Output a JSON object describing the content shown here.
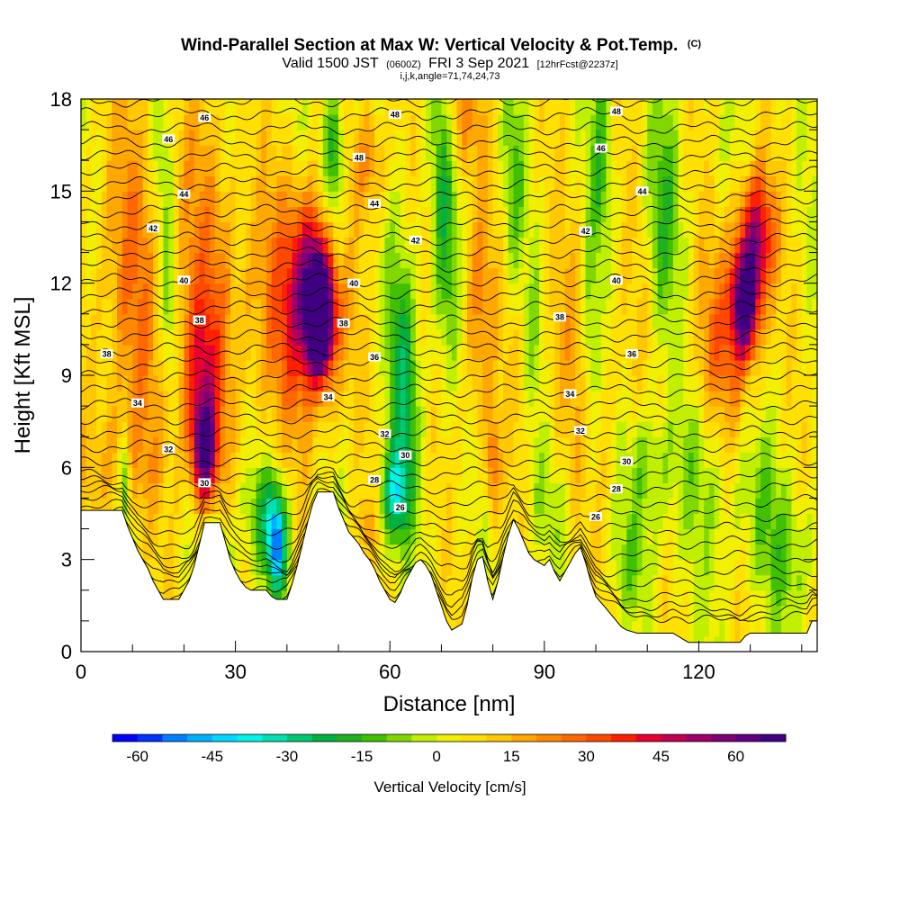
{
  "header": {
    "title_main": "Wind-Parallel Section at Max W: Vertical Velocity & Pot.Temp.",
    "title_suffix": "(C)",
    "valid_prefix": "Valid 1500 JST",
    "valid_small": "(0600Z)",
    "valid_date": "FRI 3 Sep 2021",
    "forecast": "[12hrFcst@2237z]",
    "params": "i,j,k,angle=71,74,24,73"
  },
  "chart_data": {
    "type": "heatmap",
    "xlabel": "Distance [nm]",
    "ylabel": "Height [Kft MSL]",
    "xlim": [
      0,
      143
    ],
    "ylim": [
      0,
      18
    ],
    "x_ticks": [
      0,
      30,
      60,
      90,
      120
    ],
    "y_ticks": [
      0,
      3,
      6,
      9,
      12,
      15,
      18
    ],
    "colorbar": {
      "label": "Vertical Velocity [cm/s]",
      "ticks": [
        -60,
        -45,
        -30,
        -15,
        0,
        15,
        30,
        45,
        60
      ],
      "range": [
        -65,
        70
      ],
      "step": 5,
      "colors": [
        "#0000ff",
        "#0033ff",
        "#0080ff",
        "#00b0ff",
        "#00d8ff",
        "#00f5e8",
        "#00e0b0",
        "#00c870",
        "#00b040",
        "#20b020",
        "#40c000",
        "#80d800",
        "#c0f000",
        "#f0f000",
        "#ffe000",
        "#ffc800",
        "#ffa800",
        "#ff8800",
        "#ff6800",
        "#ff4800",
        "#ff2000",
        "#e80030",
        "#c00050",
        "#a00068",
        "#800078",
        "#600080",
        "#400080"
      ]
    },
    "terrain": [
      [
        0,
        4.6
      ],
      [
        8,
        4.6
      ],
      [
        9,
        4.1
      ],
      [
        10,
        3.7
      ],
      [
        11,
        3.3
      ],
      [
        12,
        3.0
      ],
      [
        13,
        2.7
      ],
      [
        14,
        2.3
      ],
      [
        15,
        2.0
      ],
      [
        16,
        1.7
      ],
      [
        19,
        1.7
      ],
      [
        20,
        2.0
      ],
      [
        21,
        2.3
      ],
      [
        22,
        2.8
      ],
      [
        23,
        3.5
      ],
      [
        24,
        4.2
      ],
      [
        27,
        4.2
      ],
      [
        28,
        3.6
      ],
      [
        29,
        3.0
      ],
      [
        30,
        2.6
      ],
      [
        31,
        2.3
      ],
      [
        32,
        2.1
      ],
      [
        33,
        2.0
      ],
      [
        36,
        2.0
      ],
      [
        37,
        1.8
      ],
      [
        38,
        1.7
      ],
      [
        40,
        1.7
      ],
      [
        41,
        2.2
      ],
      [
        42,
        2.8
      ],
      [
        43,
        3.5
      ],
      [
        44,
        4.2
      ],
      [
        45,
        4.8
      ],
      [
        46,
        5.2
      ],
      [
        49,
        5.2
      ],
      [
        50,
        4.7
      ],
      [
        51,
        4.3
      ],
      [
        52,
        3.9
      ],
      [
        53,
        3.7
      ],
      [
        54,
        3.5
      ],
      [
        55,
        3.2
      ],
      [
        56,
        3.0
      ],
      [
        57,
        2.7
      ],
      [
        58,
        2.3
      ],
      [
        59,
        2.0
      ],
      [
        60,
        1.7
      ],
      [
        61,
        1.6
      ],
      [
        62,
        1.9
      ],
      [
        63,
        2.3
      ],
      [
        64,
        2.6
      ],
      [
        65,
        2.9
      ],
      [
        66,
        3.0
      ],
      [
        67,
        2.8
      ],
      [
        68,
        2.5
      ],
      [
        69,
        2.0
      ],
      [
        70,
        1.5
      ],
      [
        71,
        1.0
      ],
      [
        72,
        0.7
      ],
      [
        74,
        0.9
      ],
      [
        75,
        1.5
      ],
      [
        76,
        2.4
      ],
      [
        77,
        3.0
      ],
      [
        78,
        3.1
      ],
      [
        79,
        2.3
      ],
      [
        80,
        1.7
      ],
      [
        81,
        2.3
      ],
      [
        82,
        3.1
      ],
      [
        83,
        3.8
      ],
      [
        84,
        4.3
      ],
      [
        85,
        4.0
      ],
      [
        86,
        3.6
      ],
      [
        87,
        3.2
      ],
      [
        88,
        3.0
      ],
      [
        89,
        2.9
      ],
      [
        90,
        2.8
      ],
      [
        91,
        3.0
      ],
      [
        92,
        2.6
      ],
      [
        93,
        2.3
      ],
      [
        94,
        2.6
      ],
      [
        95,
        2.9
      ],
      [
        96,
        3.2
      ],
      [
        97,
        3.4
      ],
      [
        98,
        2.9
      ],
      [
        99,
        2.3
      ],
      [
        100,
        1.8
      ],
      [
        101,
        1.6
      ],
      [
        102,
        1.4
      ],
      [
        103,
        1.2
      ],
      [
        104,
        1.0
      ],
      [
        105,
        0.8
      ],
      [
        106,
        0.7
      ],
      [
        108,
        0.6
      ],
      [
        115,
        0.6
      ],
      [
        117,
        0.4
      ],
      [
        118,
        0.3
      ],
      [
        128,
        0.3
      ],
      [
        129,
        0.5
      ],
      [
        130,
        0.6
      ],
      [
        141,
        0.6
      ],
      [
        142,
        1.0
      ],
      [
        143,
        1.0
      ]
    ],
    "isentrope_labels": [
      {
        "text": "46",
        "x": 24,
        "y": 17.4
      },
      {
        "text": "48",
        "x": 61,
        "y": 17.5
      },
      {
        "text": "48",
        "x": 104,
        "y": 17.6
      },
      {
        "text": "46",
        "x": 17,
        "y": 16.7
      },
      {
        "text": "46",
        "x": 101,
        "y": 16.4
      },
      {
        "text": "48",
        "x": 54,
        "y": 16.1
      },
      {
        "text": "44",
        "x": 20,
        "y": 14.9
      },
      {
        "text": "44",
        "x": 109,
        "y": 15.0
      },
      {
        "text": "44",
        "x": 57,
        "y": 14.6
      },
      {
        "text": "42",
        "x": 14,
        "y": 13.8
      },
      {
        "text": "42",
        "x": 65,
        "y": 13.4
      },
      {
        "text": "42",
        "x": 98,
        "y": 13.7
      },
      {
        "text": "40",
        "x": 20,
        "y": 12.1
      },
      {
        "text": "40",
        "x": 53,
        "y": 12.0
      },
      {
        "text": "40",
        "x": 104,
        "y": 12.1
      },
      {
        "text": "38",
        "x": 23,
        "y": 10.8
      },
      {
        "text": "38",
        "x": 51,
        "y": 10.7
      },
      {
        "text": "38",
        "x": 93,
        "y": 10.9
      },
      {
        "text": "38",
        "x": 5,
        "y": 9.7
      },
      {
        "text": "36",
        "x": 57,
        "y": 9.6
      },
      {
        "text": "36",
        "x": 107,
        "y": 9.7
      },
      {
        "text": "34",
        "x": 11,
        "y": 8.1
      },
      {
        "text": "34",
        "x": 48,
        "y": 8.3
      },
      {
        "text": "34",
        "x": 95,
        "y": 8.4
      },
      {
        "text": "32",
        "x": 17,
        "y": 6.6
      },
      {
        "text": "32",
        "x": 59,
        "y": 7.1
      },
      {
        "text": "32",
        "x": 97,
        "y": 7.2
      },
      {
        "text": "30",
        "x": 24,
        "y": 5.5
      },
      {
        "text": "30",
        "x": 63,
        "y": 6.4
      },
      {
        "text": "30",
        "x": 106,
        "y": 6.2
      },
      {
        "text": "28",
        "x": 57,
        "y": 5.6
      },
      {
        "text": "28",
        "x": 104,
        "y": 5.3
      },
      {
        "text": "26",
        "x": 62,
        "y": 4.7
      },
      {
        "text": "26",
        "x": 100,
        "y": 4.4
      }
    ]
  }
}
